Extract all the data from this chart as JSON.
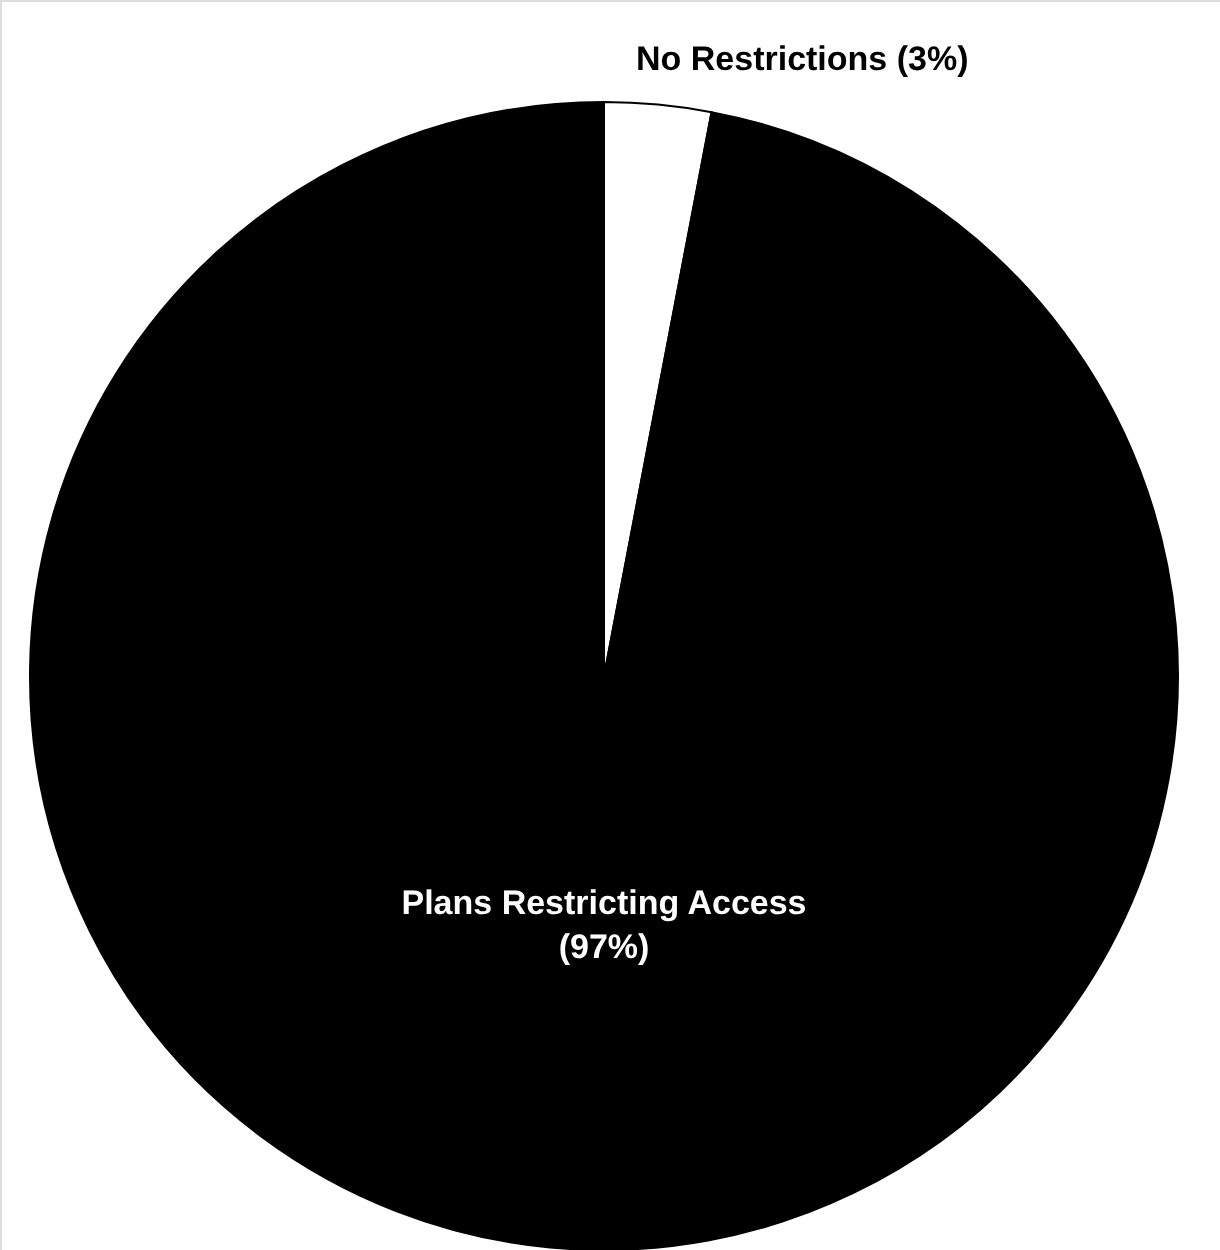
{
  "chart_data": {
    "type": "pie",
    "categories": [
      "No Restrictions",
      "Plans Restricting Access"
    ],
    "values": [
      3,
      97
    ],
    "value_labels": [
      "(3%)",
      "(97%)"
    ],
    "colors": [
      "#ffffff",
      "#000000"
    ]
  }
}
